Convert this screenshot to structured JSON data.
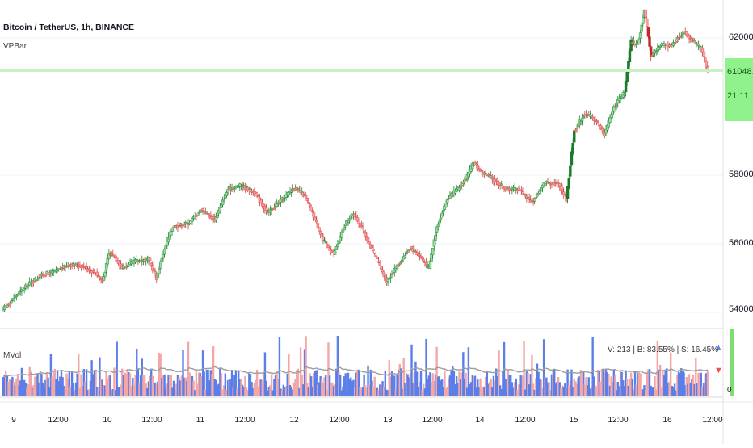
{
  "header": {
    "symbol_title": "Bitcoin / TetherUS, 1h, BINANCE",
    "indicator_main": "VPBar",
    "indicator_volume": "MVol"
  },
  "price_scale": {
    "ticks": [
      "62000.00",
      "58000.00",
      "56000.00",
      "54000.00"
    ],
    "last_price": "61048.09",
    "countdown": "21:11"
  },
  "volume_pane": {
    "stats": "V: 213 | B: 83.55% | S: 16.45%",
    "zero_label": "0",
    "buy_arrow": "▲",
    "sell_arrow": "▼"
  },
  "time_axis": {
    "labels": [
      "9",
      "12:00",
      "10",
      "12:00",
      "11",
      "12:00",
      "12",
      "12:00",
      "13",
      "12:00",
      "14",
      "12:00",
      "15",
      "12:00",
      "16",
      "12:00"
    ]
  },
  "colors": {
    "up": "#2ea043",
    "down": "#ef5350",
    "up_light": "#a5d6a7",
    "down_light": "#f4a7a7",
    "vol_buy": "#5b7fe8",
    "vol_sell": "#f4a7a7",
    "last_price_bg": "#8ff28a",
    "ma_line": "#9e9e9e"
  },
  "chart_data": {
    "type": "candlestick",
    "title": "Bitcoin / TetherUS, 1h, BINANCE",
    "ylim": [
      53500,
      63200
    ],
    "y_ticks": [
      54000,
      56000,
      58000,
      62000
    ],
    "last_price": 61048.09,
    "x_labels": [
      "9",
      "12:00",
      "10",
      "12:00",
      "11",
      "12:00",
      "12",
      "12:00",
      "13",
      "12:00",
      "14",
      "12:00",
      "15",
      "12:00",
      "16",
      "12:00"
    ],
    "price_path": [
      [
        0,
        54100
      ],
      [
        10,
        54500
      ],
      [
        20,
        54850
      ],
      [
        30,
        55100
      ],
      [
        40,
        55200
      ],
      [
        50,
        55400
      ],
      [
        60,
        55350
      ],
      [
        70,
        55150
      ],
      [
        75,
        54900
      ],
      [
        80,
        55700
      ],
      [
        84,
        55650
      ],
      [
        90,
        55300
      ],
      [
        100,
        55500
      ],
      [
        110,
        55550
      ],
      [
        116,
        55000
      ],
      [
        120,
        55600
      ],
      [
        128,
        56500
      ],
      [
        140,
        56600
      ],
      [
        150,
        57000
      ],
      [
        160,
        56700
      ],
      [
        170,
        57600
      ],
      [
        180,
        57700
      ],
      [
        190,
        57500
      ],
      [
        200,
        56900
      ],
      [
        210,
        57250
      ],
      [
        220,
        57650
      ],
      [
        228,
        57400
      ],
      [
        235,
        56800
      ],
      [
        242,
        56100
      ],
      [
        250,
        55700
      ],
      [
        258,
        56500
      ],
      [
        265,
        56900
      ],
      [
        272,
        56400
      ],
      [
        282,
        55600
      ],
      [
        290,
        54900
      ],
      [
        298,
        55350
      ],
      [
        308,
        55900
      ],
      [
        316,
        55600
      ],
      [
        322,
        55300
      ],
      [
        328,
        56500
      ],
      [
        336,
        57300
      ],
      [
        344,
        57600
      ],
      [
        350,
        57900
      ],
      [
        356,
        58350
      ],
      [
        362,
        58100
      ],
      [
        370,
        57900
      ],
      [
        380,
        57600
      ],
      [
        390,
        57600
      ],
      [
        400,
        57200
      ],
      [
        410,
        57800
      ],
      [
        420,
        57750
      ],
      [
        426,
        57300
      ],
      [
        432,
        59300
      ],
      [
        440,
        59800
      ],
      [
        448,
        59600
      ],
      [
        455,
        59200
      ],
      [
        462,
        60000
      ],
      [
        470,
        60400
      ],
      [
        475,
        61900
      ],
      [
        480,
        61800
      ],
      [
        485,
        62800
      ],
      [
        490,
        61500
      ],
      [
        498,
        61800
      ],
      [
        506,
        61800
      ],
      [
        515,
        62200
      ],
      [
        522,
        61900
      ],
      [
        528,
        61700
      ],
      [
        533,
        61048
      ]
    ],
    "series": [
      {
        "name": "MVol",
        "type": "volume_bars"
      }
    ]
  }
}
